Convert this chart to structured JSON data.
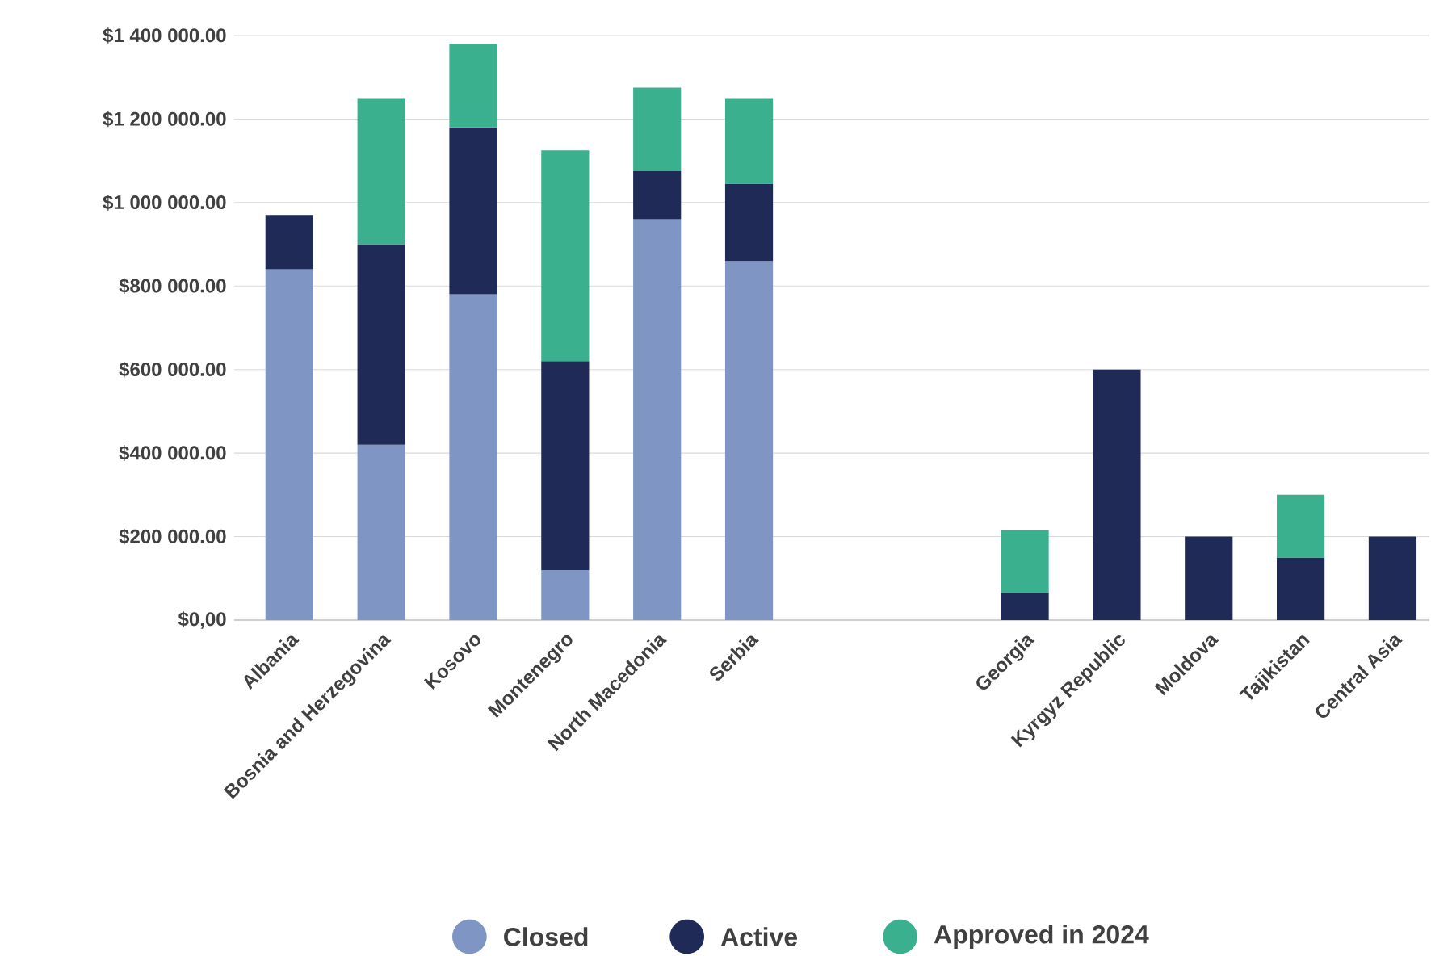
{
  "chart_data": {
    "type": "bar",
    "stacked": true,
    "categories": [
      "Albania",
      "Bosnia and Herzegovina",
      "Kosovo",
      "Montenegro",
      "North Macedonia",
      "Serbia",
      null,
      null,
      "Georgia",
      "Kyrgyz Republic",
      "Moldova",
      "Tajikistan",
      "Central Asia"
    ],
    "series": [
      {
        "name": "Closed",
        "color": "#7f95c4",
        "values": [
          840000,
          420000,
          780000,
          120000,
          960000,
          860000,
          null,
          null,
          null,
          null,
          null,
          null,
          null
        ]
      },
      {
        "name": "Active",
        "color": "#1f2a56",
        "values": [
          130000,
          480000,
          400000,
          500000,
          115000,
          185000,
          null,
          null,
          65000,
          600000,
          200000,
          150000,
          200000
        ]
      },
      {
        "name": "Approved in 2024",
        "color": "#3bb08f",
        "values": [
          null,
          350000,
          200000,
          505000,
          200000,
          205000,
          null,
          null,
          150000,
          null,
          null,
          150000,
          null
        ]
      }
    ],
    "ylim": [
      0,
      1400000
    ],
    "yticks": [
      {
        "value": 0,
        "label": "$0,00"
      },
      {
        "value": 200000,
        "label": "$200 000.00"
      },
      {
        "value": 400000,
        "label": "$400 000.00"
      },
      {
        "value": 600000,
        "label": "$600 000.00"
      },
      {
        "value": 800000,
        "label": "$800 000.00"
      },
      {
        "value": 1000000,
        "label": "$1 000 000.00"
      },
      {
        "value": 1200000,
        "label": "$1 200 000.00"
      },
      {
        "value": 1400000,
        "label": "$1 400 000.00"
      }
    ],
    "grid": "y",
    "legend": "bottom",
    "marker": "circle"
  }
}
